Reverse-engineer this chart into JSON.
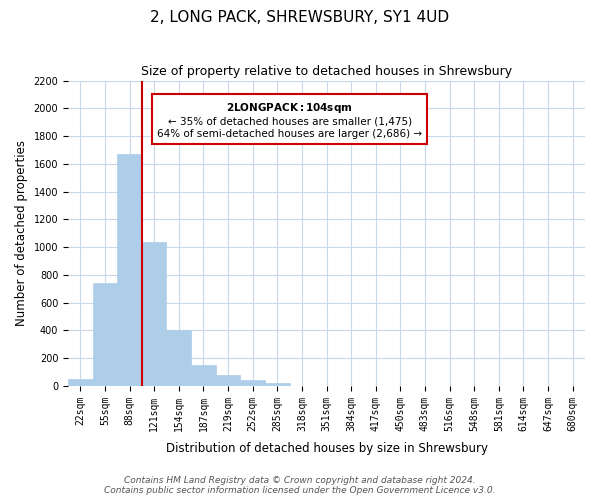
{
  "title": "2, LONG PACK, SHREWSBURY, SY1 4UD",
  "subtitle": "Size of property relative to detached houses in Shrewsbury",
  "xlabel": "Distribution of detached houses by size in Shrewsbury",
  "ylabel": "Number of detached properties",
  "bar_labels": [
    "22sqm",
    "55sqm",
    "88sqm",
    "121sqm",
    "154sqm",
    "187sqm",
    "219sqm",
    "252sqm",
    "285sqm",
    "318sqm",
    "351sqm",
    "384sqm",
    "417sqm",
    "450sqm",
    "483sqm",
    "516sqm",
    "548sqm",
    "581sqm",
    "614sqm",
    "647sqm",
    "680sqm"
  ],
  "bar_values": [
    50,
    745,
    1670,
    1040,
    405,
    150,
    80,
    45,
    20,
    0,
    0,
    0,
    0,
    0,
    0,
    0,
    0,
    0,
    0,
    0,
    0
  ],
  "bar_color": "#aecde8",
  "bar_edge_color": "#aecde8",
  "ylim": [
    0,
    2200
  ],
  "yticks": [
    0,
    200,
    400,
    600,
    800,
    1000,
    1200,
    1400,
    1600,
    1800,
    2000,
    2200
  ],
  "vline_x": 3,
  "vline_color": "#cc0000",
  "annotation_title": "2 LONG PACK: 104sqm",
  "annotation_line1": "← 35% of detached houses are smaller (1,475)",
  "annotation_line2": "64% of semi-detached houses are larger (2,686) →",
  "annotation_box_color": "#ffffff",
  "annotation_box_edge_color": "#cc0000",
  "footer_line1": "Contains HM Land Registry data © Crown copyright and database right 2024.",
  "footer_line2": "Contains public sector information licensed under the Open Government Licence v3.0.",
  "bg_color": "#ffffff",
  "grid_color": "#c8d8e8",
  "title_fontsize": 11,
  "subtitle_fontsize": 9,
  "axis_label_fontsize": 8.5,
  "tick_fontsize": 7,
  "footer_fontsize": 6.5
}
